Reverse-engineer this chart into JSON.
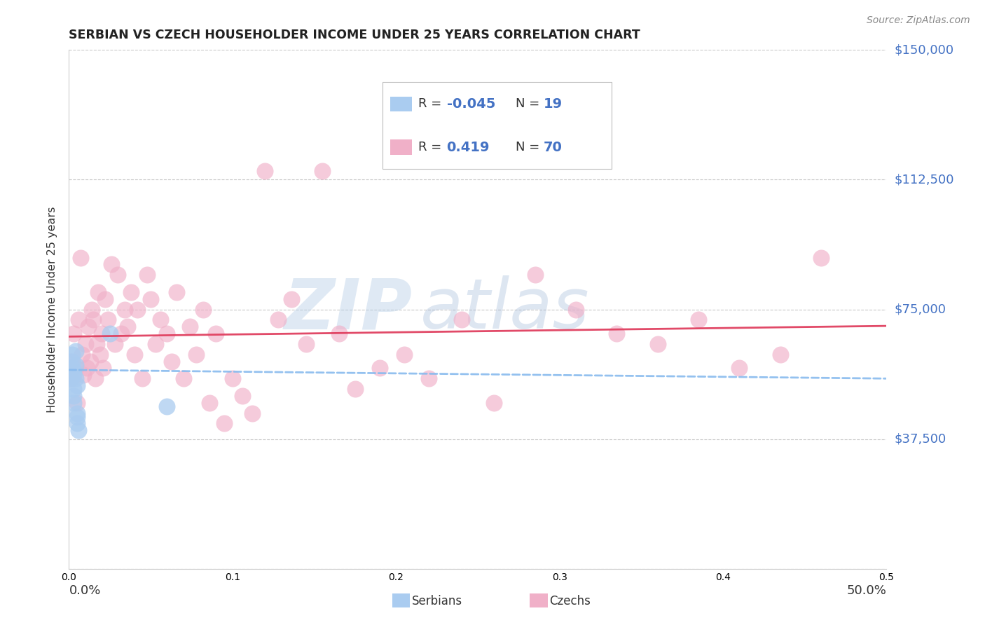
{
  "title": "SERBIAN VS CZECH HOUSEHOLDER INCOME UNDER 25 YEARS CORRELATION CHART",
  "source": "Source: ZipAtlas.com",
  "ylabel": "Householder Income Under 25 years",
  "xlim": [
    0.0,
    0.5
  ],
  "ylim": [
    0,
    150000
  ],
  "yticks": [
    0,
    37500,
    75000,
    112500,
    150000
  ],
  "ytick_labels": [
    "",
    "$37,500",
    "$75,000",
    "$112,500",
    "$150,000"
  ],
  "background_color": "#ffffff",
  "grid_color": "#c8c8c8",
  "watermark_parts": [
    "ZIP",
    "atlas"
  ],
  "watermark_color1": "#b8cfe8",
  "watermark_color2": "#a0b8d8",
  "legend_serbian_r": "-0.045",
  "legend_serbian_n": "19",
  "legend_czech_r": "0.419",
  "legend_czech_n": "70",
  "serbian_color": "#aaccf0",
  "czech_color": "#f0b0c8",
  "serbian_line_color": "#88bbee",
  "czech_line_color": "#e04060",
  "label_color": "#4472c4",
  "serb_x": [
    0.001,
    0.002,
    0.002,
    0.002,
    0.003,
    0.003,
    0.003,
    0.003,
    0.003,
    0.004,
    0.004,
    0.004,
    0.005,
    0.005,
    0.005,
    0.005,
    0.006,
    0.025,
    0.06
  ],
  "serb_y": [
    55000,
    58000,
    60000,
    62000,
    52000,
    56000,
    50000,
    57000,
    48000,
    55000,
    63000,
    59000,
    53000,
    45000,
    42000,
    44000,
    40000,
    68000,
    47000
  ],
  "czech_x": [
    0.001,
    0.002,
    0.003,
    0.004,
    0.005,
    0.006,
    0.007,
    0.008,
    0.009,
    0.01,
    0.011,
    0.012,
    0.013,
    0.014,
    0.015,
    0.016,
    0.017,
    0.018,
    0.019,
    0.02,
    0.021,
    0.022,
    0.024,
    0.026,
    0.028,
    0.03,
    0.032,
    0.034,
    0.036,
    0.038,
    0.04,
    0.042,
    0.045,
    0.048,
    0.05,
    0.053,
    0.056,
    0.06,
    0.063,
    0.066,
    0.07,
    0.074,
    0.078,
    0.082,
    0.086,
    0.09,
    0.095,
    0.1,
    0.106,
    0.112,
    0.12,
    0.128,
    0.136,
    0.145,
    0.155,
    0.165,
    0.175,
    0.19,
    0.205,
    0.22,
    0.24,
    0.26,
    0.285,
    0.31,
    0.335,
    0.36,
    0.385,
    0.41,
    0.435,
    0.46
  ],
  "czech_y": [
    60000,
    55000,
    68000,
    58000,
    48000,
    72000,
    90000,
    62000,
    56000,
    65000,
    58000,
    70000,
    60000,
    75000,
    72000,
    55000,
    65000,
    80000,
    62000,
    68000,
    58000,
    78000,
    72000,
    88000,
    65000,
    85000,
    68000,
    75000,
    70000,
    80000,
    62000,
    75000,
    55000,
    85000,
    78000,
    65000,
    72000,
    68000,
    60000,
    80000,
    55000,
    70000,
    62000,
    75000,
    48000,
    68000,
    42000,
    55000,
    50000,
    45000,
    115000,
    72000,
    78000,
    65000,
    115000,
    68000,
    52000,
    58000,
    62000,
    55000,
    72000,
    48000,
    85000,
    75000,
    68000,
    65000,
    72000,
    58000,
    62000,
    90000
  ]
}
